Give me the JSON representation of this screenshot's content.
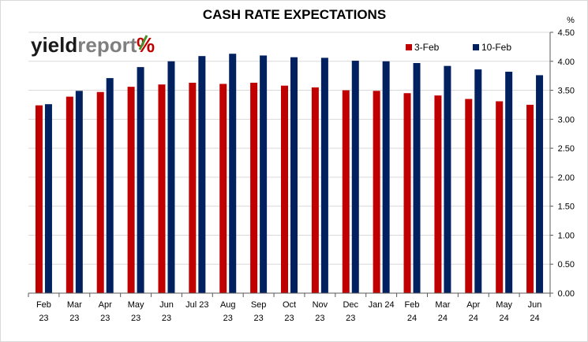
{
  "brand": {
    "logo_part1": "yield",
    "logo_part2": "report",
    "logo_symbol": "%"
  },
  "chart_data": {
    "type": "bar",
    "title": "CASH RATE EXPECTATIONS",
    "y_unit_label": "%",
    "ylim": [
      0,
      4.5
    ],
    "y_ticks": [
      "0.00",
      "0.50",
      "1.00",
      "1.50",
      "2.00",
      "2.50",
      "3.00",
      "3.50",
      "4.00",
      "4.50"
    ],
    "grid": true,
    "legend_position": "top-right",
    "categories": [
      [
        "Feb",
        "23"
      ],
      [
        "Mar",
        "23"
      ],
      [
        "Apr",
        "23"
      ],
      [
        "May",
        "23"
      ],
      [
        "Jun",
        "23"
      ],
      [
        "Jul 23",
        ""
      ],
      [
        "Aug",
        "23"
      ],
      [
        "Sep",
        "23"
      ],
      [
        "Oct",
        "23"
      ],
      [
        "Nov",
        "23"
      ],
      [
        "Dec",
        "23"
      ],
      [
        "Jan 24",
        ""
      ],
      [
        "Feb",
        "24"
      ],
      [
        "Mar",
        "24"
      ],
      [
        "Apr",
        "24"
      ],
      [
        "May",
        "24"
      ],
      [
        "Jun",
        "24"
      ]
    ],
    "series": [
      {
        "name": "3-Feb",
        "color": "#c00000",
        "values": [
          3.24,
          3.39,
          3.47,
          3.56,
          3.6,
          3.63,
          3.61,
          3.63,
          3.58,
          3.55,
          3.5,
          3.49,
          3.45,
          3.41,
          3.35,
          3.31,
          3.25
        ]
      },
      {
        "name": "10-Feb",
        "color": "#002060",
        "values": [
          3.26,
          3.49,
          3.71,
          3.9,
          4.0,
          4.09,
          4.13,
          4.1,
          4.07,
          4.06,
          4.01,
          4.0,
          3.97,
          3.92,
          3.86,
          3.82,
          3.76
        ]
      }
    ]
  }
}
